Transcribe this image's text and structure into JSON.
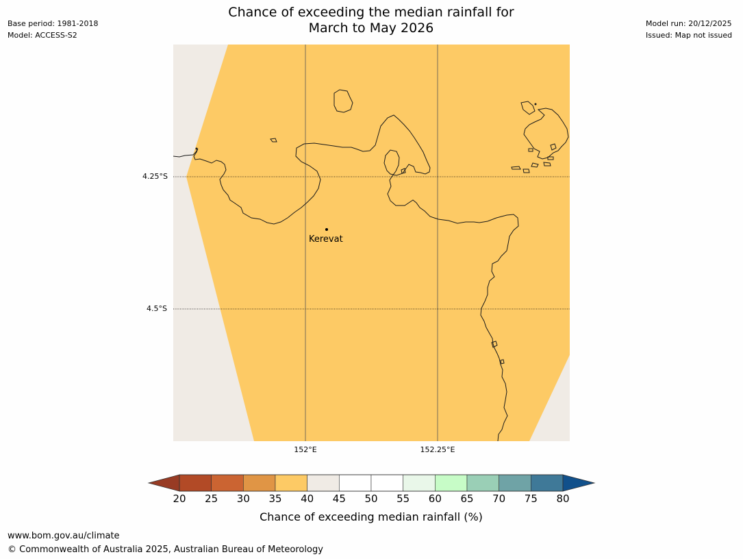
{
  "header": {
    "title_line1": "Chance of exceeding the median rainfall for",
    "title_line2": "March to May 2026",
    "base_period": "Base period: 1981-2018",
    "model": "Model: ACCESS-S2",
    "model_run": "Model run: 20/12/2025",
    "issued": "Issued: Map not issued"
  },
  "map": {
    "lat_labels": [
      "4.25°S",
      "4.5°S"
    ],
    "lon_labels": [
      "152°E",
      "152.25°E"
    ],
    "place": "Kerevat",
    "fill_color": "#fdca65",
    "nodata_color": "#f0ebe5",
    "category": "40"
  },
  "colorbar": {
    "label": "Chance of exceeding median rainfall (%)",
    "ticks": [
      "20",
      "25",
      "30",
      "35",
      "40",
      "45",
      "50",
      "55",
      "60",
      "65",
      "70",
      "75",
      "80"
    ],
    "colors": [
      "#b24a26",
      "#cb6432",
      "#e09545",
      "#fdca65",
      "#f0ebe5",
      "#ffffff",
      "#ffffff",
      "#e9f7e9",
      "#c7fcc7",
      "#9acfb6",
      "#6fa3a6",
      "#3f7998"
    ],
    "under_color": "#983b24",
    "over_color": "#11508b"
  },
  "footer": {
    "url": "www.bom.gov.au/climate",
    "copyright": "© Commonwealth of Australia 2025, Australian Bureau of Meteorology"
  }
}
